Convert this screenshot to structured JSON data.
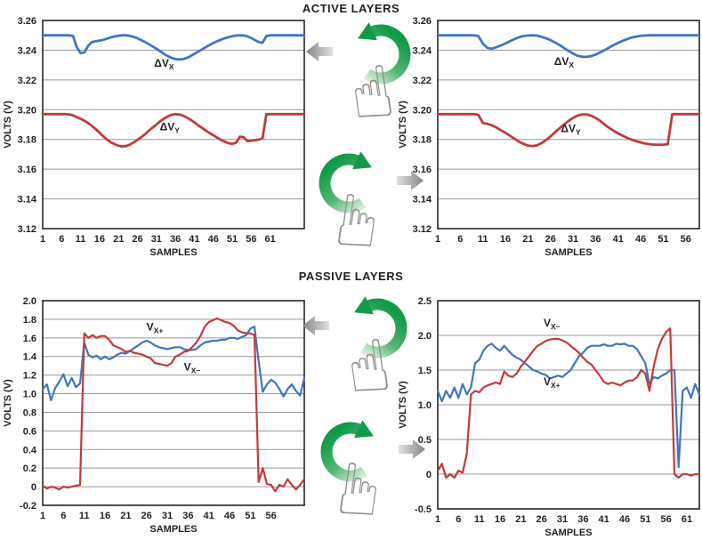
{
  "figure": {
    "section_titles": {
      "active": "ACTIVE LAYERS",
      "passive": "PASSIVE LAYERS"
    }
  },
  "colors": {
    "blue": "#4076BE",
    "red": "#C13B3B",
    "grid": "#999999",
    "frame": "#262626",
    "text": "#231F20",
    "green_dark": "#119A47",
    "green_light": "#D9EDDA",
    "gray_arrow_dark": "#858585",
    "gray_arrow_light": "#E0E0E0"
  },
  "gestures": [
    {
      "id": "active-rotate-ccw",
      "rotation": "counterclockwise",
      "result_arrow": "left"
    },
    {
      "id": "active-rotate-cw",
      "rotation": "clockwise",
      "result_arrow": "right"
    },
    {
      "id": "passive-rotate-ccw",
      "rotation": "counterclockwise",
      "result_arrow": "left"
    },
    {
      "id": "passive-rotate-cw",
      "rotation": "clockwise",
      "result_arrow": "right"
    }
  ],
  "chart_data": [
    {
      "id": "active-left",
      "type": "line",
      "xlabel": "SAMPLES",
      "ylabel": "VOLTS (V)",
      "xlim": [
        1,
        70
      ],
      "ylim": [
        3.12,
        3.26
      ],
      "grid": "horizontal",
      "legend_position": "inline-annotations",
      "x_ticks": [
        1,
        6,
        11,
        16,
        21,
        26,
        31,
        36,
        41,
        46,
        51,
        56,
        61
      ],
      "y_ticks": [
        {
          "value": 3.26,
          "label": "3.26"
        },
        {
          "value": 3.24,
          "label": "3.24"
        },
        {
          "value": 3.22,
          "label": "3.22"
        },
        {
          "value": 3.2,
          "label": "3.20"
        },
        {
          "value": 3.18,
          "label": "3.18"
        },
        {
          "value": 3.16,
          "label": "3.16"
        },
        {
          "value": 3.14,
          "label": "3.14"
        },
        {
          "value": 3.12,
          "label": "3.12"
        }
      ],
      "annotations": [
        {
          "main": "ΔV",
          "sub": "X",
          "x": 33,
          "y": 3.229
        },
        {
          "main": "ΔV",
          "sub": "Y",
          "x": 34.5,
          "y": 3.1862
        }
      ],
      "series": [
        {
          "name": "ΔVX",
          "color": "blue",
          "values": [
            3.25,
            3.25,
            3.25,
            3.25,
            3.25,
            3.25,
            3.25,
            3.25,
            3.2495,
            3.242,
            3.238,
            3.2385,
            3.243,
            3.2455,
            3.246,
            3.2465,
            3.247,
            3.2478,
            3.2487,
            3.2493,
            3.2497,
            3.25,
            3.25,
            3.2496,
            3.249,
            3.248,
            3.2468,
            3.2455,
            3.244,
            3.2425,
            3.241,
            3.2393,
            3.2375,
            3.236,
            3.2348,
            3.234,
            3.2338,
            3.234,
            3.2348,
            3.236,
            3.2375,
            3.239,
            3.2405,
            3.242,
            3.2435,
            3.2448,
            3.246,
            3.247,
            3.248,
            3.2488,
            3.2494,
            3.2498,
            3.25,
            3.2499,
            3.2493,
            3.2482,
            3.2468,
            3.2455,
            3.245,
            3.2495,
            3.25,
            3.25,
            3.25,
            3.25,
            3.25,
            3.25,
            3.25,
            3.25,
            3.25,
            3.25
          ]
        },
        {
          "name": "ΔVY",
          "color": "red",
          "values": [
            3.197,
            3.197,
            3.197,
            3.197,
            3.197,
            3.197,
            3.197,
            3.1968,
            3.1962,
            3.195,
            3.1938,
            3.1925,
            3.191,
            3.189,
            3.1868,
            3.1845,
            3.182,
            3.1798,
            3.178,
            3.1768,
            3.1757,
            3.1752,
            3.1755,
            3.1765,
            3.178,
            3.1797,
            3.1815,
            3.1835,
            3.1858,
            3.188,
            3.19,
            3.1922,
            3.194,
            3.1955,
            3.1965,
            3.197,
            3.1968,
            3.196,
            3.1948,
            3.1932,
            3.1915,
            3.1895,
            3.1878,
            3.186,
            3.1843,
            3.1828,
            3.1812,
            3.1797,
            3.1785,
            3.1775,
            3.177,
            3.1778,
            3.1818,
            3.1815,
            3.1788,
            3.1792,
            3.1795,
            3.1798,
            3.1808,
            3.197,
            3.197,
            3.197,
            3.197,
            3.197,
            3.197,
            3.197,
            3.197,
            3.197,
            3.197,
            3.197
          ]
        }
      ]
    },
    {
      "id": "active-right",
      "type": "line",
      "xlabel": "SAMPLES",
      "ylabel": "VOLTS (V)",
      "xlim": [
        1,
        59
      ],
      "ylim": [
        3.12,
        3.26
      ],
      "grid": "horizontal",
      "legend_position": "inline-annotations",
      "x_ticks": [
        1,
        6,
        11,
        16,
        21,
        26,
        31,
        36,
        41,
        46,
        51,
        56
      ],
      "y_ticks": [
        {
          "value": 3.26,
          "label": "3.26"
        },
        {
          "value": 3.24,
          "label": "3.24"
        },
        {
          "value": 3.22,
          "label": "3.22"
        },
        {
          "value": 3.2,
          "label": "3.20"
        },
        {
          "value": 3.18,
          "label": "3.18"
        },
        {
          "value": 3.16,
          "label": "3.16"
        },
        {
          "value": 3.14,
          "label": "3.14"
        },
        {
          "value": 3.12,
          "label": "3.12"
        }
      ],
      "annotations": [
        {
          "main": "ΔV",
          "sub": "X",
          "x": 29,
          "y": 3.23
        },
        {
          "main": "ΔV",
          "sub": "Y",
          "x": 30.5,
          "y": 3.185
        }
      ],
      "series": [
        {
          "name": "ΔVX",
          "color": "blue",
          "values": [
            3.25,
            3.25,
            3.25,
            3.25,
            3.25,
            3.25,
            3.25,
            3.25,
            3.25,
            3.2495,
            3.2445,
            3.2415,
            3.241,
            3.242,
            3.2432,
            3.2445,
            3.246,
            3.2475,
            3.2487,
            3.2495,
            3.2499,
            3.25,
            3.2498,
            3.249,
            3.248,
            3.2468,
            3.2452,
            3.2435,
            3.2415,
            3.2395,
            3.2378,
            3.2363,
            3.2356,
            3.2355,
            3.236,
            3.237,
            3.2385,
            3.24,
            3.2418,
            3.2435,
            3.245,
            3.2463,
            3.2475,
            3.2485,
            3.2492,
            3.2497,
            3.2499,
            3.25,
            3.25,
            3.25,
            3.25,
            3.25,
            3.25,
            3.25,
            3.25,
            3.25,
            3.25,
            3.25,
            3.25
          ]
        },
        {
          "name": "ΔVY",
          "color": "red",
          "values": [
            3.197,
            3.197,
            3.197,
            3.197,
            3.197,
            3.197,
            3.197,
            3.197,
            3.197,
            3.1965,
            3.191,
            3.1905,
            3.1895,
            3.188,
            3.1862,
            3.1845,
            3.1825,
            3.1805,
            3.1785,
            3.177,
            3.1758,
            3.1755,
            3.176,
            3.1775,
            3.1795,
            3.182,
            3.1848,
            3.1875,
            3.19,
            3.1925,
            3.1945,
            3.196,
            3.1968,
            3.1968,
            3.196,
            3.1945,
            3.1925,
            3.19,
            3.1878,
            3.1858,
            3.184,
            3.1825,
            3.181,
            3.1798,
            3.1788,
            3.178,
            3.1772,
            3.1768,
            3.1765,
            3.1765,
            3.1765,
            3.1768,
            3.197,
            3.197,
            3.197,
            3.197,
            3.197,
            3.197,
            3.197
          ]
        }
      ]
    },
    {
      "id": "passive-left",
      "type": "line",
      "xlabel": "SAMPLES",
      "ylabel": "VOLTS (V)",
      "xlim": [
        1,
        64
      ],
      "ylim": [
        -0.2,
        2.0
      ],
      "grid": "horizontal",
      "legend_position": "inline-annotations",
      "x_ticks": [
        1,
        6,
        11,
        16,
        21,
        26,
        31,
        36,
        41,
        46,
        51,
        56
      ],
      "y_ticks": [
        {
          "value": 2.0,
          "label": "2.0"
        },
        {
          "value": 1.8,
          "label": "1.8"
        },
        {
          "value": 1.6,
          "label": "1.6"
        },
        {
          "value": 1.4,
          "label": "1.4"
        },
        {
          "value": 1.2,
          "label": "1.2"
        },
        {
          "value": 1.0,
          "label": "1.0"
        },
        {
          "value": 0.8,
          "label": "0.8"
        },
        {
          "value": 0.6,
          "label": "0.6"
        },
        {
          "value": 0.4,
          "label": "0.4"
        },
        {
          "value": 0.2,
          "label": "0.2"
        },
        {
          "value": 0.0,
          "label": "0"
        },
        {
          "value": -0.2,
          "label": "-0.2"
        }
      ],
      "annotations": [
        {
          "main": "V",
          "sub": "X+",
          "x": 28,
          "y": 1.68
        },
        {
          "main": "V",
          "sub": "X−",
          "x": 37,
          "y": 1.25
        }
      ],
      "series": [
        {
          "name": "VX+",
          "color": "blue",
          "values": [
            1.05,
            1.1,
            0.93,
            1.06,
            1.13,
            1.21,
            1.08,
            1.17,
            1.07,
            1.11,
            1.55,
            1.42,
            1.39,
            1.41,
            1.37,
            1.4,
            1.37,
            1.39,
            1.42,
            1.44,
            1.43,
            1.46,
            1.49,
            1.52,
            1.55,
            1.57,
            1.55,
            1.52,
            1.5,
            1.49,
            1.48,
            1.49,
            1.5,
            1.5,
            1.48,
            1.47,
            1.47,
            1.48,
            1.52,
            1.55,
            1.56,
            1.57,
            1.57,
            1.58,
            1.58,
            1.6,
            1.6,
            1.59,
            1.61,
            1.63,
            1.7,
            1.72,
            1.35,
            1.02,
            1.1,
            1.15,
            1.12,
            1.05,
            0.97,
            1.05,
            1.1,
            1.03,
            0.98,
            1.17
          ]
        },
        {
          "name": "VX−",
          "color": "red",
          "values": [
            0.01,
            -0.02,
            0,
            -0.01,
            -0.03,
            0,
            -0.01,
            0,
            0.01,
            0.02,
            1.65,
            1.6,
            1.63,
            1.6,
            1.62,
            1.62,
            1.58,
            1.52,
            1.5,
            1.48,
            1.45,
            1.46,
            1.44,
            1.43,
            1.42,
            1.4,
            1.38,
            1.33,
            1.32,
            1.31,
            1.3,
            1.33,
            1.4,
            1.42,
            1.45,
            1.46,
            1.5,
            1.55,
            1.62,
            1.72,
            1.77,
            1.79,
            1.81,
            1.79,
            1.77,
            1.76,
            1.73,
            1.68,
            1.66,
            1.65,
            1.65,
            1.63,
            0.05,
            0.2,
            0.03,
            0.02,
            -0.05,
            0.02,
            0,
            0.08,
            0.02,
            -0.03,
            0.02,
            0.08
          ]
        }
      ]
    },
    {
      "id": "passive-right",
      "type": "line",
      "xlabel": "SAMPLES",
      "ylabel": "VOLTS (V)",
      "xlim": [
        1,
        64
      ],
      "ylim": [
        -0.5,
        2.5
      ],
      "grid": "horizontal",
      "legend_position": "inline-annotations",
      "x_ticks": [
        1,
        6,
        11,
        16,
        21,
        26,
        31,
        36,
        41,
        46,
        51,
        56,
        61
      ],
      "y_ticks": [
        {
          "value": 2.5,
          "label": "2.5"
        },
        {
          "value": 2.0,
          "label": "2.0"
        },
        {
          "value": 1.5,
          "label": "1.5"
        },
        {
          "value": 1.0,
          "label": "1.0"
        },
        {
          "value": 0.5,
          "label": "0.5"
        },
        {
          "value": 0.0,
          "label": "0"
        },
        {
          "value": -0.5,
          "label": "-0.5"
        }
      ],
      "annotations": [
        {
          "main": "V",
          "sub": "X−",
          "x": 28.5,
          "y": 2.13
        },
        {
          "main": "V",
          "sub": "X+",
          "x": 28.5,
          "y": 1.28
        }
      ],
      "series": [
        {
          "name": "VX+",
          "color": "blue",
          "values": [
            1.2,
            1.05,
            1.2,
            1.1,
            1.25,
            1.1,
            1.3,
            1.15,
            1.25,
            1.6,
            1.65,
            1.78,
            1.85,
            1.88,
            1.82,
            1.78,
            1.85,
            1.78,
            1.72,
            1.68,
            1.65,
            1.6,
            1.55,
            1.5,
            1.48,
            1.45,
            1.43,
            1.38,
            1.4,
            1.42,
            1.4,
            1.45,
            1.5,
            1.6,
            1.7,
            1.75,
            1.82,
            1.85,
            1.85,
            1.85,
            1.87,
            1.85,
            1.85,
            1.88,
            1.87,
            1.88,
            1.85,
            1.85,
            1.8,
            1.7,
            1.6,
            1.3,
            1.4,
            1.38,
            1.42,
            1.45,
            1.5,
            1.5,
            0.1,
            1.2,
            1.25,
            1.1,
            1.3,
            1.15
          ]
        },
        {
          "name": "VX−",
          "color": "red",
          "values": [
            0.05,
            0.15,
            -0.05,
            0,
            -0.05,
            0.05,
            0.02,
            0.3,
            1.15,
            1.2,
            1.18,
            1.25,
            1.28,
            1.3,
            1.32,
            1.3,
            1.48,
            1.42,
            1.4,
            1.45,
            1.55,
            1.62,
            1.7,
            1.78,
            1.85,
            1.88,
            1.92,
            1.94,
            1.95,
            1.95,
            1.93,
            1.9,
            1.85,
            1.8,
            1.75,
            1.68,
            1.62,
            1.58,
            1.5,
            1.42,
            1.33,
            1.3,
            1.32,
            1.3,
            1.28,
            1.32,
            1.35,
            1.35,
            1.4,
            1.5,
            1.45,
            1.2,
            1.55,
            1.8,
            1.95,
            2.05,
            2.1,
            0,
            -0.05,
            0,
            0,
            -0.02,
            0,
            0
          ]
        }
      ]
    }
  ]
}
